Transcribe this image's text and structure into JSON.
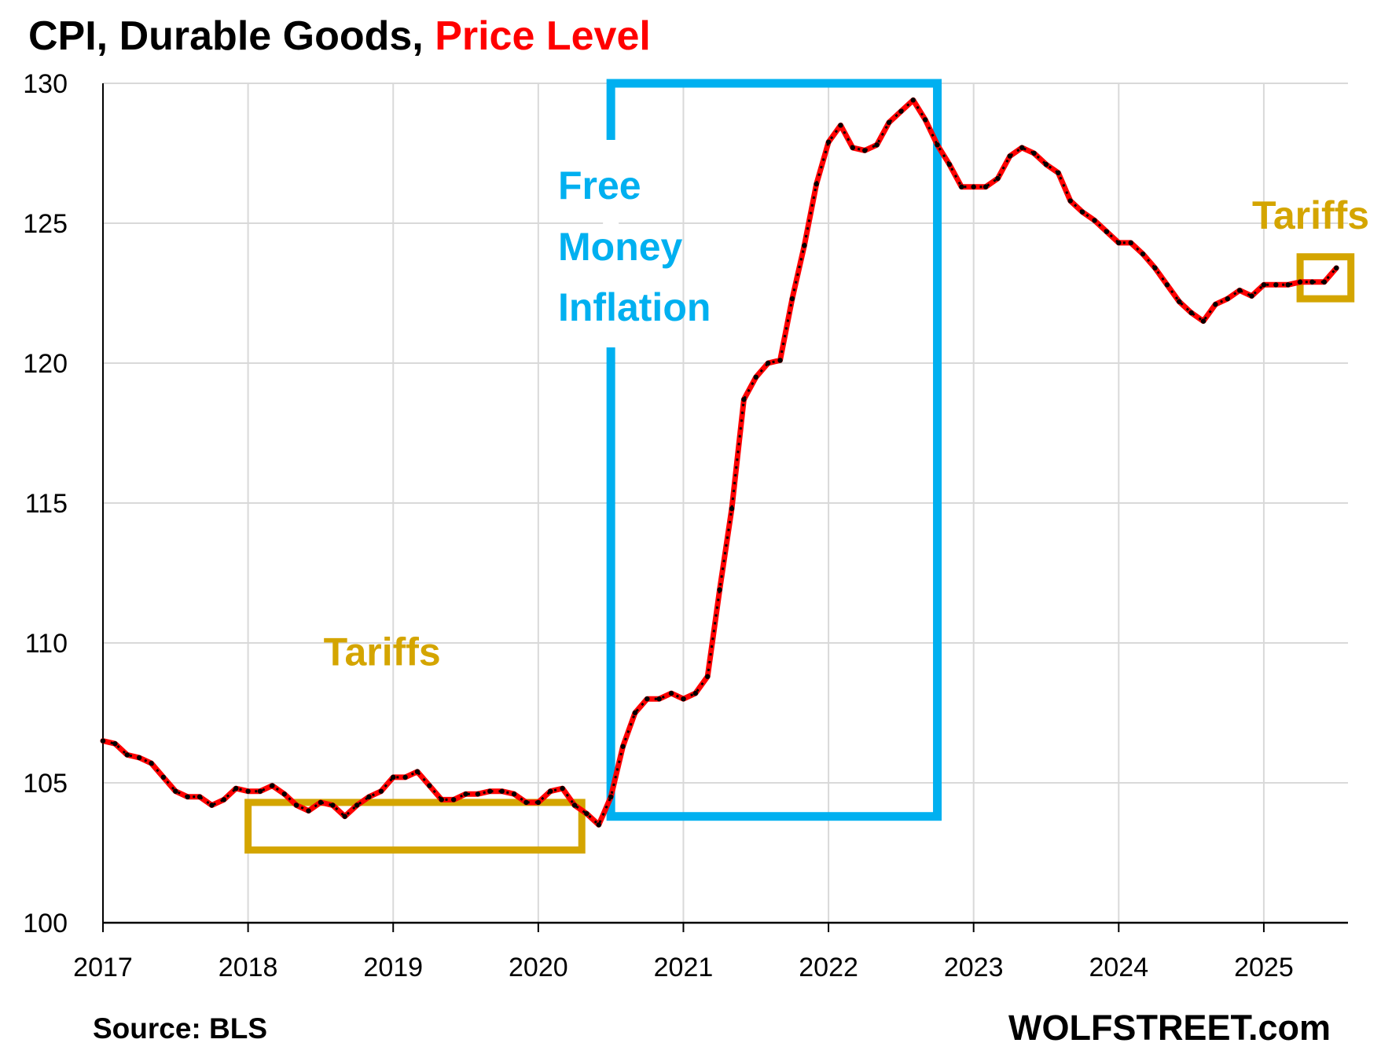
{
  "title": {
    "part1": "CPI, Durable Goods,",
    "part2": "Price Level",
    "part2_color": "#ff0000"
  },
  "footer": {
    "source": "Source: BLS",
    "brand": "WOLFSTREET.com"
  },
  "colors": {
    "line": "#ff0000",
    "line_dash": "#000000",
    "free_money_box": "#00b0f0",
    "tariffs": "#d4a500",
    "grid": "#d9d9d9"
  },
  "chart_data": {
    "type": "line",
    "title": "CPI, Durable Goods, Price Level",
    "xlabel": "",
    "ylabel": "",
    "ylim": [
      100,
      130
    ],
    "xlim": [
      2017,
      2025.58
    ],
    "yticks": [
      100,
      105,
      110,
      115,
      120,
      125,
      130
    ],
    "xticks": [
      2017,
      2018,
      2019,
      2020,
      2021,
      2022,
      2023,
      2024,
      2025
    ],
    "grid": true,
    "legend": "none",
    "series": [
      {
        "start": "2017-01",
        "frequency": "monthly",
        "values": [
          106.5,
          106.4,
          106.0,
          105.9,
          105.7,
          105.2,
          104.7,
          104.5,
          104.5,
          104.2,
          104.4,
          104.8,
          104.7,
          104.7,
          104.9,
          104.6,
          104.2,
          104.0,
          104.3,
          104.2,
          103.8,
          104.2,
          104.5,
          104.7,
          105.2,
          105.2,
          105.4,
          104.9,
          104.4,
          104.4,
          104.6,
          104.6,
          104.7,
          104.7,
          104.6,
          104.3,
          104.3,
          104.7,
          104.8,
          104.2,
          103.9,
          103.5,
          104.5,
          106.3,
          107.5,
          108.0,
          108.0,
          108.2,
          108.0,
          108.2,
          108.8,
          111.9,
          114.8,
          118.7,
          119.5,
          120.0,
          120.1,
          122.3,
          124.2,
          126.4,
          127.9,
          128.5,
          127.7,
          127.6,
          127.8,
          128.6,
          129.0,
          129.4,
          128.7,
          127.8,
          127.1,
          126.3,
          126.3,
          126.3,
          126.6,
          127.4,
          127.7,
          127.5,
          127.1,
          126.8,
          125.8,
          125.4,
          125.1,
          124.7,
          124.3,
          124.3,
          123.9,
          123.4,
          122.8,
          122.2,
          121.8,
          121.5,
          122.1,
          122.3,
          122.6,
          122.4,
          122.8,
          122.8,
          122.8,
          122.9,
          122.9,
          122.9,
          123.4
        ]
      }
    ],
    "annotations": [
      {
        "text": "Tariffs",
        "box": {
          "x": [
            2018.0,
            2020.3
          ],
          "y": [
            102.6,
            104.3
          ]
        },
        "color": "#d4a500"
      },
      {
        "text": "Tariffs",
        "box": {
          "x": [
            2025.25,
            2025.6
          ],
          "y": [
            122.3,
            123.8
          ]
        },
        "color": "#d4a500"
      },
      {
        "lines": [
          "Free",
          "Money",
          "Inflation"
        ],
        "box": {
          "x": [
            2020.5,
            2022.75
          ],
          "y": [
            103.8,
            130.0
          ]
        },
        "color": "#00b0f0"
      }
    ]
  }
}
